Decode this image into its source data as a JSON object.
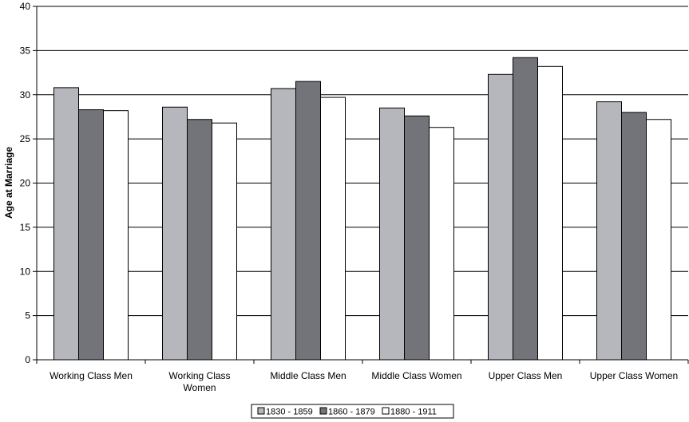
{
  "chart_data": {
    "type": "bar",
    "title": "",
    "xlabel": "",
    "ylabel": "Age at Marriage",
    "ylim": [
      0,
      40
    ],
    "yticks": [
      0,
      5,
      10,
      15,
      20,
      25,
      30,
      35,
      40
    ],
    "grid": true,
    "legend_position": "bottom",
    "categories": [
      [
        "Working Class Men"
      ],
      [
        "Working Class",
        "Women"
      ],
      [
        "Middle Class Men"
      ],
      [
        "Middle Class Women"
      ],
      [
        "Upper Class Men"
      ],
      [
        "Upper Class Women"
      ]
    ],
    "series": [
      {
        "name": "1830 - 1859",
        "color": "#b6b7bc",
        "values": [
          30.8,
          28.6,
          30.7,
          28.5,
          32.3,
          29.2
        ]
      },
      {
        "name": "1860 - 1879",
        "color": "#737479",
        "values": [
          28.3,
          27.2,
          31.5,
          27.6,
          34.2,
          28.0
        ]
      },
      {
        "name": "1880 - 1911",
        "color": "#ffffff",
        "values": [
          28.2,
          26.8,
          29.7,
          26.3,
          33.2,
          27.2
        ]
      }
    ]
  }
}
